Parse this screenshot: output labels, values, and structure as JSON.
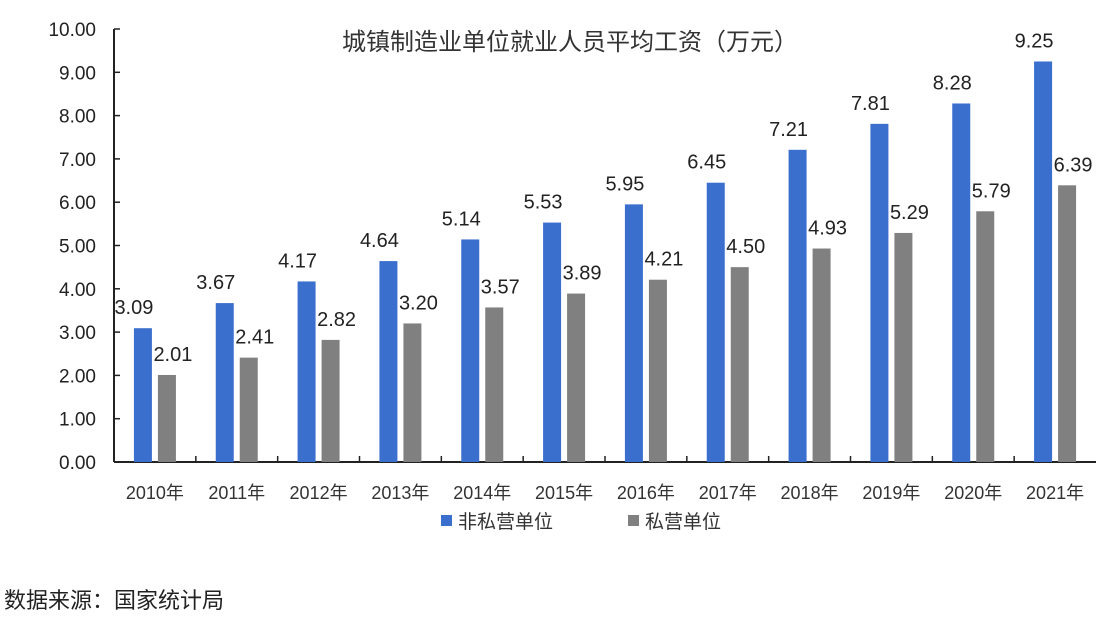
{
  "chart_data": {
    "type": "bar",
    "title": "城镇制造业单位就业人员平均工资（万元）",
    "categories": [
      "2010年",
      "2011年",
      "2012年",
      "2013年",
      "2014年",
      "2015年",
      "2016年",
      "2017年",
      "2018年",
      "2019年",
      "2020年",
      "2021年"
    ],
    "series": [
      {
        "name": "非私营单位",
        "color": "#3A6FCE",
        "values": [
          3.09,
          3.67,
          4.17,
          4.64,
          5.14,
          5.53,
          5.95,
          6.45,
          7.21,
          7.81,
          8.28,
          9.25
        ]
      },
      {
        "name": "私营单位",
        "color": "#808080",
        "values": [
          2.01,
          2.41,
          2.82,
          3.2,
          3.57,
          3.89,
          4.21,
          4.5,
          4.93,
          5.29,
          5.79,
          6.39
        ]
      }
    ],
    "ylim": [
      0,
      10
    ],
    "yticks": [
      "0.00",
      "1.00",
      "2.00",
      "3.00",
      "4.00",
      "5.00",
      "6.00",
      "7.00",
      "8.00",
      "9.00",
      "10.00"
    ],
    "grid": false,
    "legend_position": "bottom",
    "source": "数据来源：国家统计局"
  }
}
